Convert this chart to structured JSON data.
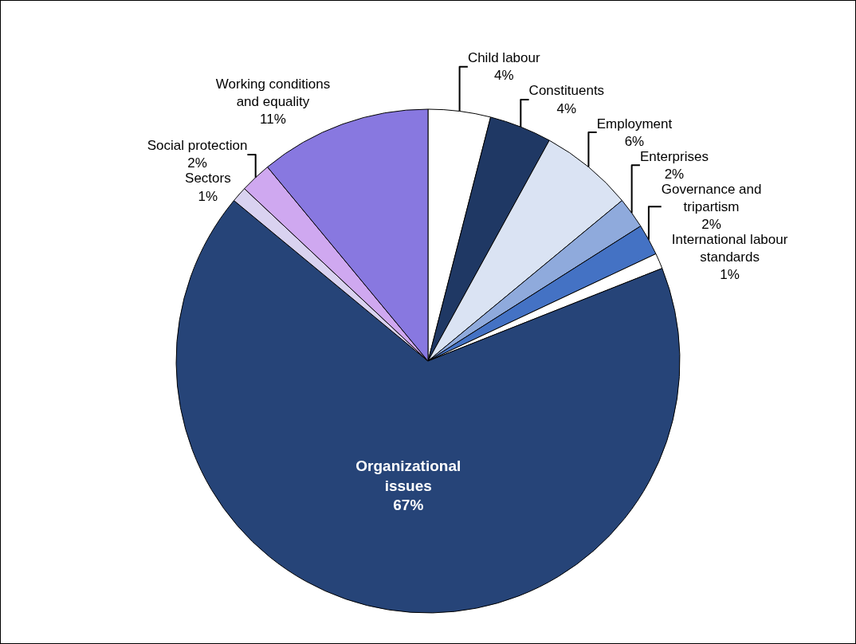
{
  "chart_data": {
    "type": "pie",
    "categories": [
      "Child labour",
      "Constituents",
      "Employment",
      "Enterprises",
      "Governance and\ntripartism",
      "International labour\nstandards",
      "Organizational\nissues",
      "Sectors",
      "Social protection",
      "Working conditions\nand equality"
    ],
    "values": [
      4,
      4,
      6,
      2,
      2,
      1,
      67,
      1,
      2,
      11
    ],
    "value_labels": [
      "4%",
      "4%",
      "6%",
      "2%",
      "2%",
      "1%",
      "67%",
      "1%",
      "2%",
      "11%"
    ],
    "colors": [
      "#ffffff",
      "#1f3864",
      "#dae3f3",
      "#8faadc",
      "#4472c4",
      "#ffffff",
      "#264478",
      "#d9d2f0",
      "#cfa8f0",
      "#8878e0"
    ],
    "legend": false
  }
}
